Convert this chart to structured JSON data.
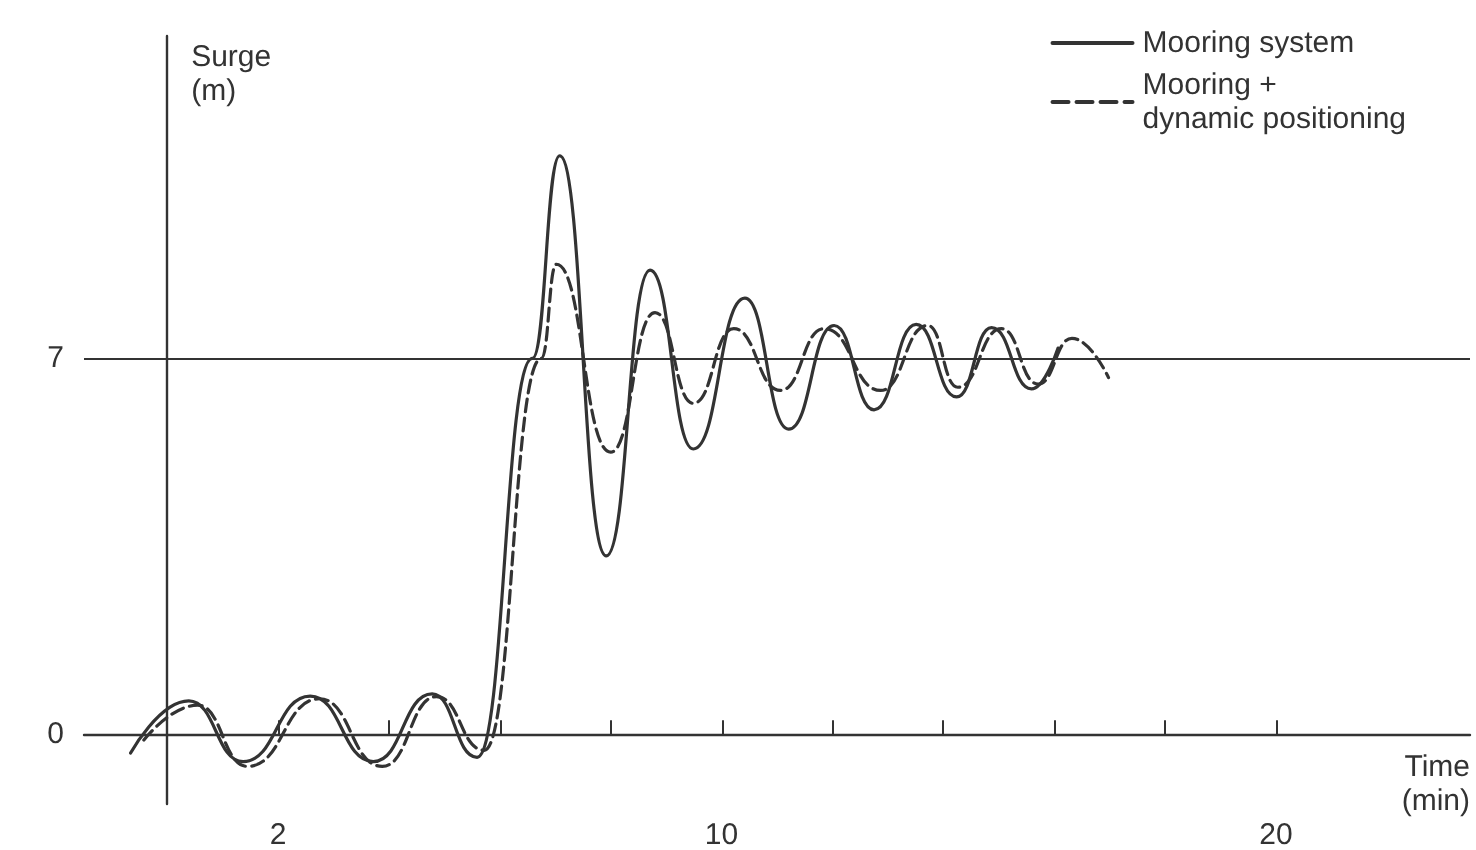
{
  "chart_data": {
    "type": "line",
    "xlabel": "Time\n(min)",
    "ylabel": "Surge\n(m)",
    "xlim": [
      -1.5,
      23.5
    ],
    "ylim": [
      -1.3,
      13
    ],
    "xticks": [
      2,
      {
        "value": 4,
        "label": null
      },
      {
        "value": 6,
        "label": null
      },
      {
        "value": 8,
        "label": null
      },
      10,
      {
        "value": 12,
        "label": null
      },
      {
        "value": 14,
        "label": null
      },
      {
        "value": 16,
        "label": null
      },
      {
        "value": 18,
        "label": null
      },
      20
    ],
    "yticks": [
      0,
      7
    ],
    "grid": false,
    "legend": "top right",
    "marker": "none",
    "ref_lines": [
      {
        "axis": "y",
        "value": 7,
        "color": "#333333"
      }
    ],
    "series": [
      {
        "name": "Mooring system",
        "color": "#333333",
        "line_style": "solid",
        "x": [
          -0.66,
          0.39,
          1.37,
          2.58,
          3.72,
          4.78,
          5.59,
          6.59,
          7.08,
          7.92,
          8.71,
          9.49,
          10.42,
          11.21,
          12.03,
          12.75,
          13.51,
          14.24,
          14.87,
          15.59,
          16.07
        ],
        "values": [
          -0.35,
          0.62,
          -0.51,
          0.71,
          -0.51,
          0.75,
          -0.43,
          7,
          10.77,
          3.32,
          8.64,
          5.31,
          8.12,
          5.68,
          7.61,
          6.04,
          7.63,
          6.28,
          7.57,
          6.43,
          7.19
        ]
      },
      {
        "name": "Mooring +\ndynamic positioning",
        "color": "#333333",
        "line_style": "dashed",
        "x": [
          -0.42,
          0.55,
          1.45,
          2.75,
          3.88,
          4.86,
          5.72,
          6.75,
          7.02,
          8.0,
          8.8,
          9.49,
          10.22,
          11.06,
          11.85,
          12.87,
          13.72,
          14.26,
          15.05,
          15.71,
          16.32,
          16.98
        ],
        "values": [
          -0.11,
          0.54,
          -0.6,
          0.66,
          -0.6,
          0.7,
          -0.3,
          7,
          8.75,
          5.25,
          7.85,
          6.16,
          7.55,
          6.4,
          7.55,
          6.4,
          7.61,
          6.46,
          7.55,
          6.52,
          7.37,
          6.64
        ]
      }
    ]
  }
}
